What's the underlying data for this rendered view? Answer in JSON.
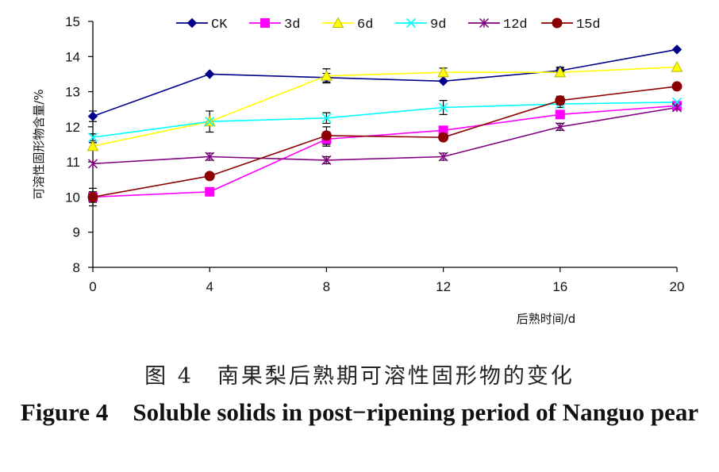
{
  "chart_data": {
    "type": "line",
    "x": [
      0,
      4,
      8,
      12,
      16,
      20
    ],
    "xlabel": "后熟时间/d",
    "ylabel": "可溶性固形物含量/%",
    "xlim": [
      0,
      20
    ],
    "ylim": [
      8,
      15
    ],
    "xticks": [
      "0",
      "4",
      "8",
      "12",
      "16",
      "20"
    ],
    "yticks": [
      "8",
      "9",
      "10",
      "11",
      "12",
      "13",
      "14",
      "15"
    ],
    "grid": false,
    "legend_position": "top",
    "series": [
      {
        "name": "CK",
        "color": "#00008b",
        "marker": "diamond",
        "values": [
          12.3,
          13.5,
          13.4,
          13.3,
          13.6,
          14.2
        ],
        "errors": [
          0.15,
          0.0,
          0.12,
          0.0,
          0.1,
          0.0
        ]
      },
      {
        "name": "3d",
        "color": "#ff00ff",
        "marker": "square",
        "values": [
          10.0,
          10.15,
          11.65,
          11.9,
          12.35,
          12.6
        ],
        "errors": [
          0.15,
          0.0,
          0.2,
          0.0,
          0.1,
          0.0
        ]
      },
      {
        "name": "6d",
        "color": "#ffff00",
        "marker": "triangle",
        "values": [
          11.45,
          12.15,
          13.45,
          13.55,
          13.55,
          13.7
        ],
        "errors": [
          0.1,
          0.0,
          0.2,
          0.12,
          0.12,
          0.0
        ]
      },
      {
        "name": "9d",
        "color": "#00ffff",
        "marker": "x",
        "values": [
          11.7,
          12.15,
          12.25,
          12.55,
          12.65,
          12.7
        ],
        "errors": [
          0.1,
          0.3,
          0.15,
          0.2,
          0.1,
          0.0
        ]
      },
      {
        "name": "12d",
        "color": "#800080",
        "marker": "star",
        "values": [
          10.95,
          11.15,
          11.05,
          11.15,
          12.0,
          12.55
        ],
        "errors": [
          0.0,
          0.1,
          0.1,
          0.1,
          0.1,
          0.0
        ]
      },
      {
        "name": "15d",
        "color": "#8b0000",
        "marker": "circle",
        "values": [
          10.0,
          10.6,
          11.75,
          11.7,
          12.75,
          13.15
        ],
        "errors": [
          0.25,
          0.0,
          0.25,
          0.0,
          0.12,
          0.0
        ]
      }
    ]
  },
  "caption": {
    "chinese": "图 4　南果梨后熟期可溶性固形物的变化",
    "english": "Figure 4　Soluble solids in post−ripening period of Nanguo pear"
  }
}
